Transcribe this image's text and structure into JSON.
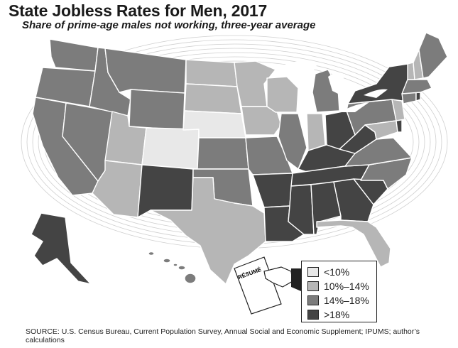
{
  "header": {
    "title": "State Jobless Rates for Men, 2017",
    "subtitle": "Share of prime-age males not working, three-year average"
  },
  "colors": {
    "lt10": "#e8e8e8",
    "10to14": "#b6b6b6",
    "14to18": "#7c7c7c",
    "gt18": "#444444",
    "background_rings": "#cfcfcf"
  },
  "legend": {
    "items": [
      {
        "label": "<10%",
        "color": "#e8e8e8"
      },
      {
        "label": "10%–14%",
        "color": "#b6b6b6"
      },
      {
        "label": "14%–18%",
        "color": "#7c7c7c"
      },
      {
        "label": ">18%",
        "color": "#444444"
      }
    ]
  },
  "illustration": {
    "resume_label": "RÉSUMÉ"
  },
  "source": "SOURCE: U.S. Census Bureau, Current Population Survey, Annual Social and Economic Supplement; IPUMS; author’s calculations",
  "states": {
    "WA": "14-18",
    "OR": "14-18",
    "CA": "14-18",
    "NV": "14-18",
    "ID": "14-18",
    "MT": "14-18",
    "WY": "14-18",
    "UT": "10-14",
    "AZ": "10-14",
    "CO": "<10",
    "NM": ">18",
    "ND": "10-14",
    "SD": "10-14",
    "NE": "<10",
    "KS": "14-18",
    "OK": "14-18",
    "TX": "10-14",
    "MN": "10-14",
    "IA": "10-14",
    "MO": "14-18",
    "AR": ">18",
    "LA": ">18",
    "WI": "10-14",
    "IL": "14-18",
    "IN": "10-14",
    "MI": "14-18",
    "OH": ">18",
    "KY": ">18",
    "TN": ">18",
    "MS": ">18",
    "AL": ">18",
    "GA": ">18",
    "FL": "10-14",
    "SC": ">18",
    "NC": "14-18",
    "VA": "14-18",
    "WV": ">18",
    "PA": "14-18",
    "NY": ">18",
    "VT": "10-14",
    "NH": "10-14",
    "ME": "14-18",
    "MA": "14-18",
    "RI": ">18",
    "CT": "14-18",
    "NJ": "10-14",
    "DE": ">18",
    "MD": "10-14",
    "AK": ">18",
    "HI": "14-18"
  }
}
